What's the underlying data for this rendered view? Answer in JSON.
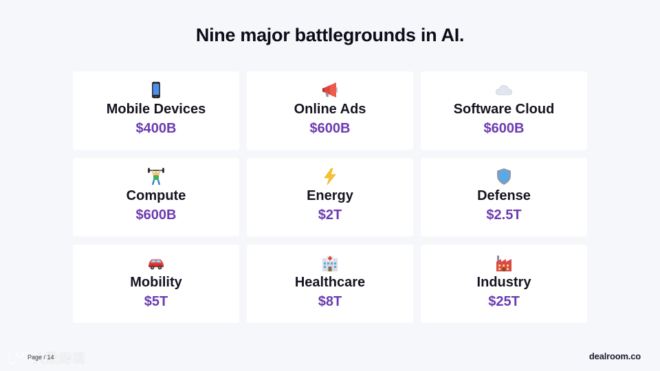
{
  "header": {
    "title": "Nine major battlegrounds in AI."
  },
  "cards": [
    {
      "icon": "mobile-phone-icon",
      "title": "Mobile Devices",
      "value": "$400B"
    },
    {
      "icon": "megaphone-icon",
      "title": "Online Ads",
      "value": "$600B"
    },
    {
      "icon": "cloud-icon",
      "title": "Software Cloud",
      "value": "$600B"
    },
    {
      "icon": "weightlifter-icon",
      "title": "Compute",
      "value": "$600B"
    },
    {
      "icon": "lightning-icon",
      "title": "Energy",
      "value": "$2T"
    },
    {
      "icon": "shield-icon",
      "title": "Defense",
      "value": "$2.5T"
    },
    {
      "icon": "car-icon",
      "title": "Mobility",
      "value": "$5T"
    },
    {
      "icon": "hospital-icon",
      "title": "Healthcare",
      "value": "$8T"
    },
    {
      "icon": "factory-icon",
      "title": "Industry",
      "value": "$25T"
    }
  ],
  "footer": {
    "page_label": "Page / 14",
    "brand": "dealroom.co",
    "watermark_text": "大数跨境"
  },
  "colors": {
    "value_accent": "#6b3bb0",
    "background": "#f6f7fb",
    "card": "#ffffff"
  }
}
